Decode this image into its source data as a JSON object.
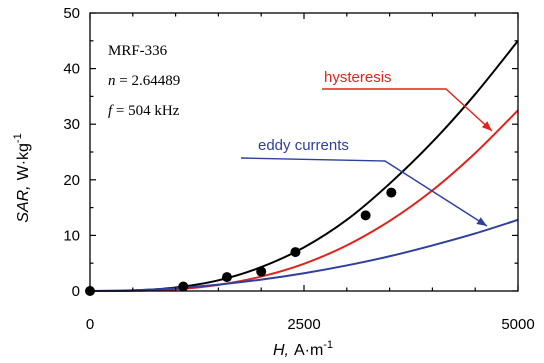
{
  "chart_data": {
    "type": "line",
    "xlabel": {
      "var": "H,",
      "unit": "A·m",
      "exp": "-1"
    },
    "ylabel": {
      "var": "SAR,",
      "unit": "W·kg",
      "exp": "-1"
    },
    "xlim": [
      0,
      5000
    ],
    "ylim": [
      0,
      50
    ],
    "xticks": [
      "0",
      "2500",
      "5000"
    ],
    "yticks": [
      "0",
      "10",
      "20",
      "30",
      "40",
      "50"
    ],
    "grid": false,
    "info": {
      "material": "MRF-336",
      "n_label": "n",
      "n_value": " = 2.64489",
      "f_label": "f",
      "f_value": " = 504 kHz"
    },
    "colors": {
      "total": "#000000",
      "hysteresis": "#e0231b",
      "eddy": "#2e3f9e"
    },
    "series": [
      {
        "key": "total",
        "style": "line",
        "x": [
          0,
          500,
          1000,
          1500,
          2000,
          2500,
          3000,
          3500,
          4000,
          4500,
          5000
        ],
        "y": [
          0,
          0.08,
          0.62,
          1.92,
          4.3,
          7.85,
          12.8,
          19.3,
          26.8,
          35.4,
          45.0
        ]
      },
      {
        "key": "hysteresis",
        "name": "hysteresis",
        "style": "line",
        "x": [
          0,
          500,
          1000,
          1500,
          2000,
          2500,
          3000,
          3500,
          4000,
          4500,
          5000
        ],
        "y": [
          0,
          0.03,
          0.3,
          1.1,
          2.6,
          4.9,
          8.2,
          12.6,
          18.1,
          24.8,
          32.5
        ]
      },
      {
        "key": "eddy",
        "name": "eddy currents",
        "style": "line",
        "x": [
          0,
          500,
          1000,
          1500,
          2000,
          2500,
          3000,
          3500,
          4000,
          4500,
          5000
        ],
        "y": [
          0,
          0.13,
          0.5,
          1.15,
          2.05,
          3.2,
          4.6,
          6.25,
          8.2,
          10.35,
          12.8
        ]
      },
      {
        "key": "measured",
        "style": "points",
        "x": [
          0,
          1090,
          1600,
          2000,
          2400,
          3220,
          3520
        ],
        "y": [
          0,
          0.8,
          2.5,
          3.5,
          7.0,
          13.6,
          17.7
        ]
      }
    ],
    "annotations": [
      {
        "key": "hysteresis",
        "text": "hysteresis",
        "color": "#e0231b"
      },
      {
        "key": "eddy",
        "text": "eddy currents",
        "color": "#2e3f9e"
      }
    ]
  }
}
